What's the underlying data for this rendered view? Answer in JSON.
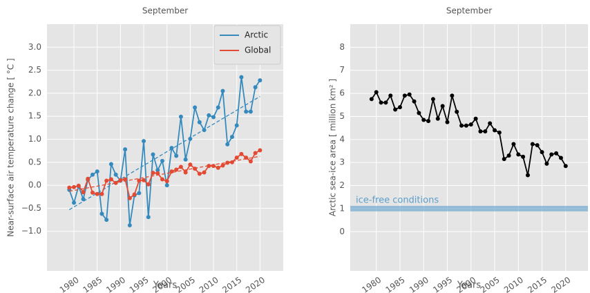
{
  "chart_data": [
    {
      "type": "line",
      "title": "September",
      "xlabel": "Years",
      "ylabel": "Near-surface air temperature change [ °C ]",
      "x": [
        1979,
        1980,
        1981,
        1982,
        1983,
        1984,
        1985,
        1986,
        1987,
        1988,
        1989,
        1990,
        1991,
        1992,
        1993,
        1994,
        1995,
        1996,
        1997,
        1998,
        1999,
        2000,
        2001,
        2002,
        2003,
        2004,
        2005,
        2006,
        2007,
        2008,
        2009,
        2010,
        2011,
        2012,
        2013,
        2014,
        2015,
        2016,
        2017,
        2018,
        2019,
        2020
      ],
      "series": [
        {
          "name": "Arctic",
          "color": "#348abd",
          "values": [
            -0.1,
            -0.38,
            -0.02,
            -0.3,
            0.12,
            0.23,
            0.3,
            -0.62,
            -0.75,
            0.46,
            0.23,
            0.1,
            0.78,
            -0.87,
            -0.22,
            -0.17,
            0.96,
            -0.69,
            0.67,
            0.33,
            0.53,
            0.0,
            0.81,
            0.64,
            1.49,
            0.56,
            1.01,
            1.69,
            1.37,
            1.2,
            1.52,
            1.48,
            1.69,
            2.05,
            0.89,
            1.05,
            1.3,
            2.35,
            1.6,
            1.6,
            2.13,
            2.28
          ],
          "trend": {
            "x": [
              1979,
              2020
            ],
            "values": [
              -0.53,
              1.93
            ]
          }
        },
        {
          "name": "Global",
          "color": "#e24a33",
          "values": [
            -0.05,
            -0.04,
            -0.01,
            -0.15,
            0.14,
            -0.16,
            -0.19,
            -0.19,
            0.1,
            0.13,
            0.05,
            0.11,
            0.13,
            -0.28,
            -0.2,
            0.1,
            0.11,
            0.02,
            0.27,
            0.26,
            0.13,
            0.09,
            0.3,
            0.34,
            0.4,
            0.28,
            0.45,
            0.36,
            0.25,
            0.28,
            0.42,
            0.42,
            0.38,
            0.43,
            0.49,
            0.5,
            0.6,
            0.68,
            0.6,
            0.52,
            0.7,
            0.76
          ],
          "trend": {
            "x": [
              1979,
              2020
            ],
            "values": [
              -0.13,
              0.63
            ]
          }
        }
      ],
      "xlim": [
        1974.2,
        2025
      ],
      "xticks": [
        1980,
        1985,
        1990,
        1995,
        2000,
        2005,
        2010,
        2015,
        2020
      ],
      "ylim": [
        -1.86,
        3.5
      ],
      "yticks": [
        {
          "value": -1,
          "label": "−1.0"
        },
        {
          "value": -0.5,
          "label": "−0.5"
        },
        {
          "value": 0,
          "label": "0.0"
        },
        {
          "value": 0.5,
          "label": "0.5"
        },
        {
          "value": 1,
          "label": "1.0"
        },
        {
          "value": 1.5,
          "label": "1.5"
        },
        {
          "value": 2,
          "label": "2.0"
        },
        {
          "value": 2.5,
          "label": "2.5"
        },
        {
          "value": 3,
          "label": "3.0"
        }
      ],
      "grid": true,
      "legend": "upper right"
    },
    {
      "type": "line",
      "title": "September",
      "xlabel": "Years",
      "ylabel": "Arctic sea-ice area [ million km² ]",
      "x": [
        1979,
        1980,
        1981,
        1982,
        1983,
        1984,
        1985,
        1986,
        1987,
        1988,
        1989,
        1990,
        1991,
        1992,
        1993,
        1994,
        1995,
        1996,
        1997,
        1998,
        1999,
        2000,
        2001,
        2002,
        2003,
        2004,
        2005,
        2006,
        2007,
        2008,
        2009,
        2010,
        2011,
        2012,
        2013,
        2014,
        2015,
        2016,
        2017,
        2018,
        2019,
        2020
      ],
      "series": [
        {
          "color": "#000000",
          "values": [
            5.75,
            6.05,
            5.6,
            5.6,
            5.9,
            5.3,
            5.4,
            5.9,
            5.95,
            5.65,
            5.15,
            4.85,
            4.8,
            5.75,
            4.9,
            5.45,
            4.75,
            5.9,
            5.2,
            4.6,
            4.6,
            4.65,
            4.9,
            4.35,
            4.35,
            4.7,
            4.4,
            4.3,
            3.15,
            3.3,
            3.8,
            3.35,
            3.25,
            2.45,
            3.8,
            3.75,
            3.45,
            2.95,
            3.35,
            3.4,
            3.2,
            2.85
          ]
        }
      ],
      "reference": {
        "label": "ice-free conditions",
        "value": 1,
        "color": "#5b9ec9"
      },
      "xlim": [
        1974.5,
        2024.7
      ],
      "xticks": [
        1980,
        1985,
        1990,
        1995,
        2000,
        2005,
        2010,
        2015,
        2020
      ],
      "ylim": [
        -1.7,
        9
      ],
      "yticks": [
        0,
        1,
        2,
        3,
        4,
        5,
        6,
        7,
        8
      ],
      "grid": true
    }
  ]
}
